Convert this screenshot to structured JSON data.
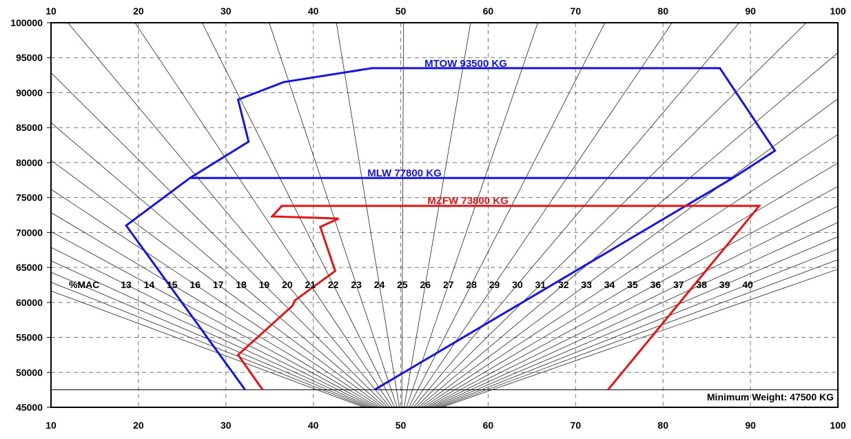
{
  "chart_data": {
    "type": "line",
    "xlim": [
      10,
      100
    ],
    "ylim": [
      45000,
      100000
    ],
    "x_ticks": [
      10,
      20,
      30,
      40,
      50,
      60,
      70,
      80,
      90,
      100
    ],
    "y_ticks": [
      45000,
      50000,
      55000,
      60000,
      65000,
      70000,
      75000,
      80000,
      85000,
      90000,
      95000,
      100000
    ],
    "grid": "dashed",
    "mac_label": "%MAC",
    "mac_values": [
      13,
      14,
      15,
      16,
      17,
      18,
      19,
      20,
      21,
      22,
      23,
      24,
      25,
      26,
      27,
      28,
      29,
      30,
      31,
      32,
      33,
      34,
      35,
      36,
      37,
      38,
      39,
      40
    ],
    "series": [
      {
        "name": "MTOW 93500 KG",
        "color": "#1414e6",
        "points": [
          [
            32.2,
            47500
          ],
          [
            18.6,
            71000
          ],
          [
            25.9,
            77800
          ],
          [
            32.6,
            83000
          ],
          [
            31.4,
            89000
          ],
          [
            36.6,
            91500
          ],
          [
            46.7,
            93500
          ],
          [
            86.5,
            93500
          ],
          [
            92.8,
            81700
          ],
          [
            88.0,
            77800
          ],
          [
            47.0,
            47500
          ]
        ]
      },
      {
        "name": "MLW 77800 KG",
        "color": "#1414e6",
        "points": [
          [
            25.9,
            77800
          ],
          [
            88.0,
            77800
          ]
        ]
      },
      {
        "name": "MZFW 73800 KG",
        "color": "#e61414",
        "points": [
          [
            34.2,
            47500
          ],
          [
            31.4,
            52500
          ],
          [
            37.6,
            59500
          ],
          [
            37.9,
            60300
          ],
          [
            42.5,
            64500
          ],
          [
            40.8,
            70800
          ],
          [
            42.9,
            72000
          ],
          [
            35.3,
            72300
          ],
          [
            36.4,
            73800
          ],
          [
            91.0,
            73800
          ],
          [
            73.7,
            47500
          ]
        ]
      }
    ],
    "annotations": [
      {
        "text": "Minimum Weight: 47500 KG",
        "y": 47500
      }
    ]
  }
}
